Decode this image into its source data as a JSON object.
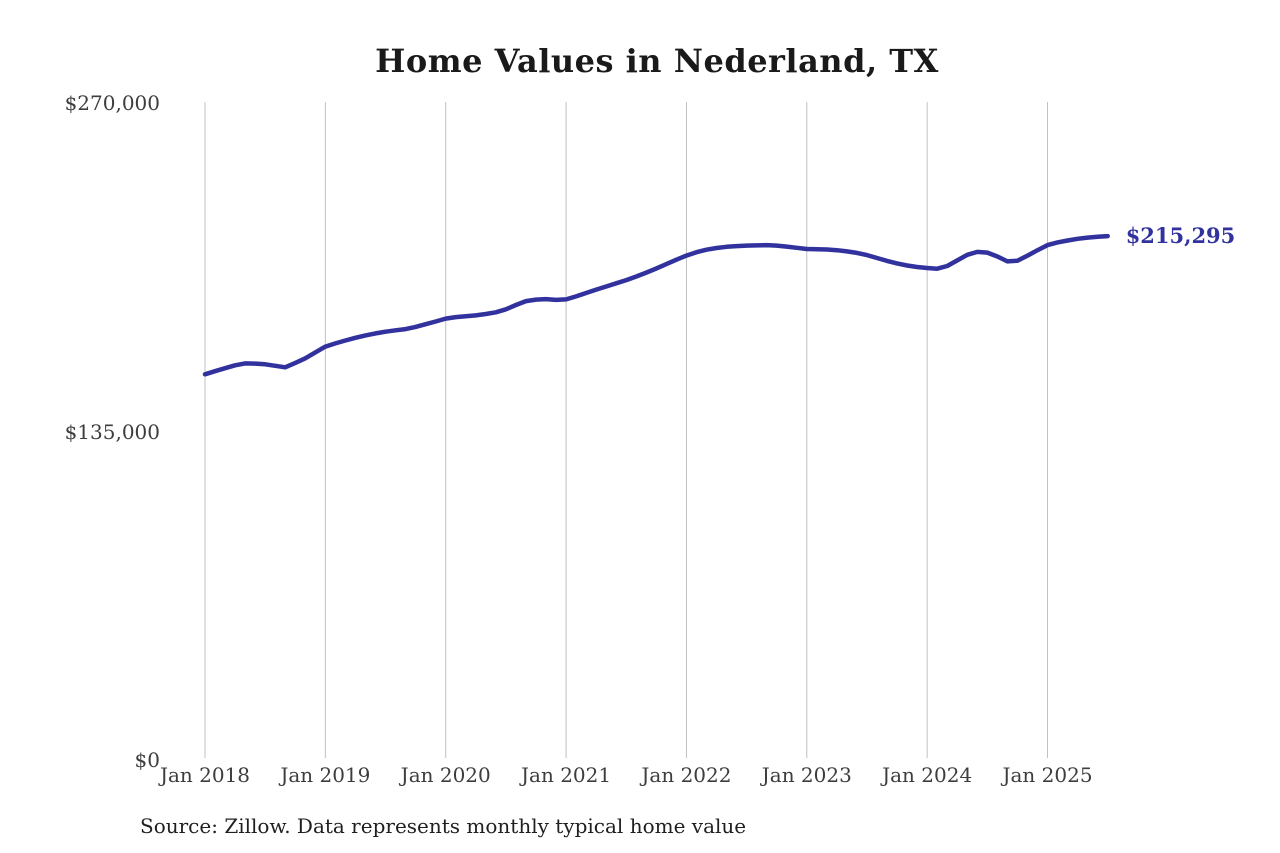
{
  "page": {
    "title": "Home Values in Nederland, TX",
    "source_note": "Source: Zillow. Data represents monthly typical home value",
    "end_value_label": "$215,295"
  },
  "colors": {
    "background": "#ffffff",
    "line": "#32329e",
    "grid": "#c0c0c0",
    "axis_label": "#3d3d3d",
    "title": "#1a1a1a",
    "source": "#1f1f1f",
    "end_label": "#32329e"
  },
  "chart_data": {
    "type": "line",
    "title": "Home Values in Nederland, TX",
    "xlabel": "",
    "ylabel": "",
    "ylim": [
      0,
      270000
    ],
    "y_ticks": [
      0,
      135000,
      270000
    ],
    "y_tick_labels": [
      "$0",
      "$135,000",
      "$270,000"
    ],
    "x_tick_labels": [
      "Jan 2018",
      "Jan 2019",
      "Jan 2020",
      "Jan 2021",
      "Jan 2022",
      "Jan 2023",
      "Jan 2024",
      "Jan 2025"
    ],
    "grid": "vertical-only",
    "legend": "none",
    "annotation": {
      "text": "$215,295",
      "position": "right-of-last-point"
    },
    "last_value": 215295,
    "series": [
      {
        "name": "Monthly typical home value",
        "x_freq": "monthly",
        "x": [
          "2018-01",
          "2018-02",
          "2018-03",
          "2018-04",
          "2018-05",
          "2018-06",
          "2018-07",
          "2018-08",
          "2018-09",
          "2018-10",
          "2018-11",
          "2018-12",
          "2019-01",
          "2019-02",
          "2019-03",
          "2019-04",
          "2019-05",
          "2019-06",
          "2019-07",
          "2019-08",
          "2019-09",
          "2019-10",
          "2019-11",
          "2019-12",
          "2020-01",
          "2020-02",
          "2020-03",
          "2020-04",
          "2020-05",
          "2020-06",
          "2020-07",
          "2020-08",
          "2020-09",
          "2020-10",
          "2020-11",
          "2020-12",
          "2021-01",
          "2021-02",
          "2021-03",
          "2021-04",
          "2021-05",
          "2021-06",
          "2021-07",
          "2021-08",
          "2021-09",
          "2021-10",
          "2021-11",
          "2021-12",
          "2022-01",
          "2022-02",
          "2022-03",
          "2022-04",
          "2022-05",
          "2022-06",
          "2022-07",
          "2022-08",
          "2022-09",
          "2022-10",
          "2022-11",
          "2022-12",
          "2023-01",
          "2023-02",
          "2023-03",
          "2023-04",
          "2023-05",
          "2023-06",
          "2023-07",
          "2023-08",
          "2023-09",
          "2023-10",
          "2023-11",
          "2023-12",
          "2024-01",
          "2024-02",
          "2024-03",
          "2024-04",
          "2024-05",
          "2024-06",
          "2024-07",
          "2024-08",
          "2024-09",
          "2024-10",
          "2024-11",
          "2024-12",
          "2025-01",
          "2025-02",
          "2025-03",
          "2025-04",
          "2025-05",
          "2025-06",
          "2025-07"
        ],
        "values": [
          158500,
          159800,
          161000,
          162200,
          163000,
          162900,
          162600,
          162000,
          161400,
          163200,
          165100,
          167500,
          169900,
          171200,
          172400,
          173500,
          174500,
          175300,
          176000,
          176600,
          177100,
          178000,
          179100,
          180200,
          181400,
          182000,
          182400,
          182700,
          183300,
          184000,
          185200,
          187000,
          188600,
          189200,
          189400,
          189100,
          189300,
          190500,
          191900,
          193300,
          194600,
          195900,
          197200,
          198700,
          200300,
          202000,
          203800,
          205600,
          207300,
          208700,
          209700,
          210400,
          210900,
          211200,
          211400,
          211500,
          211600,
          211400,
          211000,
          210500,
          210000,
          209900,
          209800,
          209500,
          209000,
          208400,
          207500,
          206300,
          205100,
          204100,
          203200,
          202600,
          202200,
          201900,
          203000,
          205300,
          207600,
          208800,
          208500,
          206900,
          204900,
          205200,
          207300,
          209500,
          211600,
          212700,
          213500,
          214200,
          214700,
          215000,
          215295
        ]
      }
    ]
  }
}
